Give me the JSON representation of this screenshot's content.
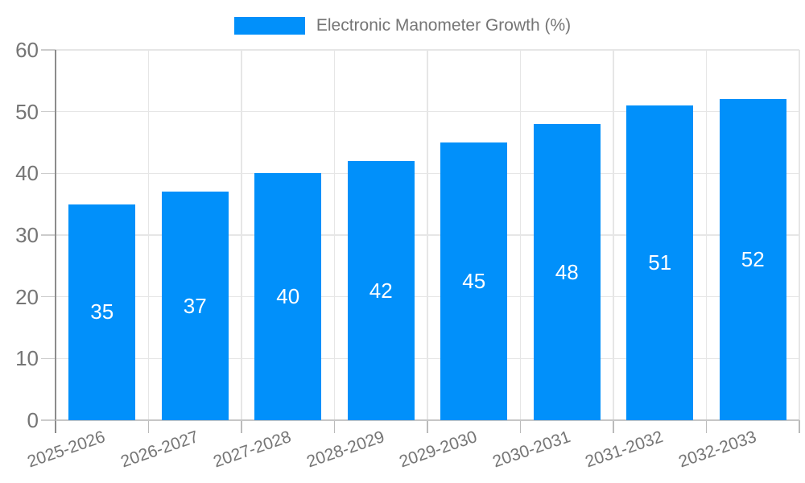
{
  "legend": {
    "label": "Electronic Manometer Growth (%)"
  },
  "chart_data": {
    "type": "bar",
    "title": "Electronic Manometer Growth (%)",
    "series_name": "Electronic Manometer Growth (%)",
    "categories": [
      "2025-2026",
      "2026-2027",
      "2027-2028",
      "2028-2029",
      "2029-2030",
      "2030-2031",
      "2031-2032",
      "2032-2033"
    ],
    "values": [
      35,
      37,
      40,
      42,
      45,
      48,
      51,
      52
    ],
    "xlabel": "",
    "ylabel": "",
    "ylim": [
      0,
      60
    ],
    "yticks": [
      0,
      10,
      20,
      30,
      40,
      50,
      60
    ],
    "grid": "horizontal-and-vertical",
    "legend_position": "top-center",
    "value_labels": "inside-center"
  },
  "colors": {
    "bar": "#0190fa",
    "grid_line": "#e6e6e6",
    "y_axis_line": "#8c8c8c",
    "x_axis_line": "#c6c6c6",
    "tick_text": "#757575",
    "value_label_text": "#ffffff",
    "background": "#ffffff"
  }
}
